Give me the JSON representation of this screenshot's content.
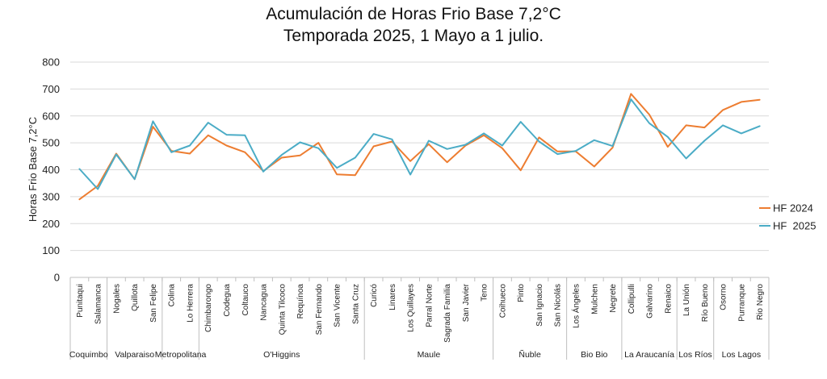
{
  "chart_data": {
    "type": "line",
    "title": "Acumulación de Horas Frio Base 7,2°C",
    "subtitle": "Temporada 2025, 1 Mayo a 1 julio.",
    "ylabel": "Horas Frio Base 7,2°C",
    "xlabel": "",
    "ylim": [
      0,
      800
    ],
    "yticks": [
      0,
      100,
      200,
      300,
      400,
      500,
      600,
      700,
      800
    ],
    "grid": true,
    "legend_position": "right",
    "categories": [
      "Punitaqui",
      "Salamanca",
      "Nogales",
      "Quillota",
      "San Felipe",
      "Colina",
      "Lo Herrera",
      "Chimbarongo",
      "Codegua",
      "Coltauco",
      "Nancagua",
      "Quinta Tilcoco",
      "Requínoa",
      "San Fernando",
      "San Vicente",
      "Santa Cruz",
      "Curicó",
      "Linares",
      "Los Quillayes",
      "Parral Norte",
      "Sagrada Familia",
      "San Javier",
      "Teno",
      "Coihueco",
      "Pinto",
      "San Ignacio",
      "San Nicolás",
      "Los Ángeles",
      "Mulchen",
      "Negrete",
      "Collipulli",
      "Galvarino",
      "Renaico",
      "La Unión",
      "Río Bueno",
      "Osorno",
      "Purranque",
      "Rio Negro"
    ],
    "regions": [
      {
        "name": "Coquimbo",
        "start": 0,
        "end": 1
      },
      {
        "name": "Valparaiso",
        "start": 2,
        "end": 4
      },
      {
        "name": "Metropolitana",
        "start": 5,
        "end": 6
      },
      {
        "name": "O'Higgins",
        "start": 7,
        "end": 15
      },
      {
        "name": "Maule",
        "start": 16,
        "end": 22
      },
      {
        "name": "Ñuble",
        "start": 23,
        "end": 26
      },
      {
        "name": "Bio Bio",
        "start": 27,
        "end": 29
      },
      {
        "name": "La Araucanía",
        "start": 30,
        "end": 32
      },
      {
        "name": "Los Ríos",
        "start": 33,
        "end": 34
      },
      {
        "name": "Los Lagos",
        "start": 35,
        "end": 37
      }
    ],
    "series": [
      {
        "name": "HF 2024",
        "color": "#ED7D31",
        "values": [
          290,
          340,
          460,
          365,
          560,
          470,
          460,
          528,
          490,
          465,
          395,
          445,
          453,
          500,
          383,
          380,
          487,
          505,
          432,
          495,
          428,
          490,
          528,
          480,
          398,
          520,
          468,
          468,
          412,
          482,
          682,
          605,
          485,
          565,
          557,
          622,
          652,
          660
        ]
      },
      {
        "name": "HF  2025",
        "color": "#4BACC6",
        "values": [
          403,
          328,
          457,
          365,
          580,
          465,
          490,
          575,
          530,
          528,
          393,
          455,
          502,
          480,
          407,
          445,
          533,
          513,
          382,
          508,
          477,
          493,
          535,
          490,
          578,
          505,
          458,
          470,
          510,
          488,
          662,
          573,
          522,
          442,
          508,
          565,
          535,
          562
        ]
      }
    ]
  }
}
